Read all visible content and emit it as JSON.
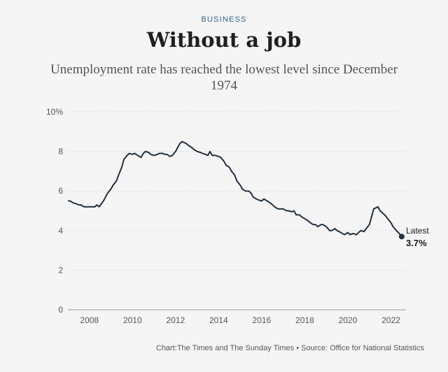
{
  "header": {
    "kicker": "BUSINESS",
    "title": "Without a job",
    "subtitle": "Unemployment rate has reached the lowest level since December 1974"
  },
  "colors": {
    "line": "#22303f",
    "grid": "#cfcfcf",
    "kicker": "#36618a"
  },
  "source": "Chart:The Times and The Sunday Times • Source: Office for National Statistics",
  "chart_data": {
    "type": "line",
    "title": "Without a job",
    "subtitle": "Unemployment rate has reached the lowest level since December 1974",
    "xlabel": "",
    "ylabel": "",
    "xlim": [
      2007.0,
      2022.7
    ],
    "ylim": [
      0,
      10
    ],
    "x_ticks": [
      2008,
      2010,
      2012,
      2014,
      2016,
      2018,
      2020,
      2022
    ],
    "y_ticks": [
      {
        "value": 0,
        "label": "0"
      },
      {
        "value": 2,
        "label": "2"
      },
      {
        "value": 4,
        "label": "4"
      },
      {
        "value": 6,
        "label": "6"
      },
      {
        "value": 8,
        "label": "8"
      },
      {
        "value": 10,
        "label": "10%"
      }
    ],
    "grid": "horizontal",
    "annotation": {
      "label": "Latest",
      "value_label": "3.7%",
      "x": 2022.1,
      "y": 3.7
    },
    "series": [
      {
        "points": [
          [
            2007.0,
            5.5
          ],
          [
            2007.1,
            5.5
          ],
          [
            2007.25,
            5.4
          ],
          [
            2007.4,
            5.35
          ],
          [
            2007.5,
            5.3
          ],
          [
            2007.6,
            5.3
          ],
          [
            2007.75,
            5.2
          ],
          [
            2007.9,
            5.2
          ],
          [
            2008.0,
            5.2
          ],
          [
            2008.15,
            5.2
          ],
          [
            2008.25,
            5.2
          ],
          [
            2008.35,
            5.3
          ],
          [
            2008.45,
            5.2
          ],
          [
            2008.55,
            5.35
          ],
          [
            2008.65,
            5.5
          ],
          [
            2008.75,
            5.7
          ],
          [
            2008.85,
            5.9
          ],
          [
            2009.0,
            6.1
          ],
          [
            2009.1,
            6.3
          ],
          [
            2009.25,
            6.5
          ],
          [
            2009.35,
            6.8
          ],
          [
            2009.5,
            7.2
          ],
          [
            2009.6,
            7.6
          ],
          [
            2009.75,
            7.8
          ],
          [
            2009.85,
            7.9
          ],
          [
            2010.0,
            7.85
          ],
          [
            2010.1,
            7.9
          ],
          [
            2010.25,
            7.8
          ],
          [
            2010.4,
            7.7
          ],
          [
            2010.5,
            7.9
          ],
          [
            2010.6,
            8.0
          ],
          [
            2010.75,
            7.95
          ],
          [
            2010.85,
            7.85
          ],
          [
            2011.0,
            7.8
          ],
          [
            2011.15,
            7.85
          ],
          [
            2011.25,
            7.9
          ],
          [
            2011.4,
            7.9
          ],
          [
            2011.5,
            7.85
          ],
          [
            2011.6,
            7.85
          ],
          [
            2011.75,
            7.75
          ],
          [
            2011.85,
            7.8
          ],
          [
            2012.0,
            8.0
          ],
          [
            2012.1,
            8.2
          ],
          [
            2012.2,
            8.4
          ],
          [
            2012.3,
            8.5
          ],
          [
            2012.4,
            8.45
          ],
          [
            2012.5,
            8.4
          ],
          [
            2012.6,
            8.3
          ],
          [
            2012.75,
            8.2
          ],
          [
            2012.85,
            8.1
          ],
          [
            2013.0,
            8.0
          ],
          [
            2013.15,
            7.95
          ],
          [
            2013.25,
            7.9
          ],
          [
            2013.4,
            7.85
          ],
          [
            2013.5,
            7.8
          ],
          [
            2013.6,
            8.0
          ],
          [
            2013.7,
            7.8
          ],
          [
            2013.85,
            7.8
          ],
          [
            2014.0,
            7.75
          ],
          [
            2014.1,
            7.7
          ],
          [
            2014.25,
            7.5
          ],
          [
            2014.35,
            7.3
          ],
          [
            2014.5,
            7.2
          ],
          [
            2014.6,
            7.0
          ],
          [
            2014.75,
            6.8
          ],
          [
            2014.85,
            6.5
          ],
          [
            2015.0,
            6.3
          ],
          [
            2015.1,
            6.1
          ],
          [
            2015.25,
            6.0
          ],
          [
            2015.4,
            6.0
          ],
          [
            2015.5,
            5.9
          ],
          [
            2015.6,
            5.7
          ],
          [
            2015.75,
            5.6
          ],
          [
            2015.85,
            5.55
          ],
          [
            2016.0,
            5.5
          ],
          [
            2016.1,
            5.6
          ],
          [
            2016.25,
            5.5
          ],
          [
            2016.4,
            5.4
          ],
          [
            2016.5,
            5.3
          ],
          [
            2016.6,
            5.2
          ],
          [
            2016.75,
            5.1
          ],
          [
            2016.85,
            5.1
          ],
          [
            2017.0,
            5.1
          ],
          [
            2017.15,
            5.0
          ],
          [
            2017.25,
            5.0
          ],
          [
            2017.4,
            4.95
          ],
          [
            2017.5,
            5.0
          ],
          [
            2017.6,
            4.8
          ],
          [
            2017.75,
            4.8
          ],
          [
            2017.85,
            4.7
          ],
          [
            2018.0,
            4.6
          ],
          [
            2018.15,
            4.5
          ],
          [
            2018.25,
            4.4
          ],
          [
            2018.4,
            4.3
          ],
          [
            2018.5,
            4.3
          ],
          [
            2018.6,
            4.2
          ],
          [
            2018.75,
            4.3
          ],
          [
            2018.85,
            4.3
          ],
          [
            2019.0,
            4.2
          ],
          [
            2019.15,
            4.0
          ],
          [
            2019.25,
            4.0
          ],
          [
            2019.4,
            4.1
          ],
          [
            2019.5,
            4.0
          ],
          [
            2019.6,
            3.95
          ],
          [
            2019.75,
            3.85
          ],
          [
            2019.85,
            3.8
          ],
          [
            2020.0,
            3.9
          ],
          [
            2020.1,
            3.8
          ],
          [
            2020.25,
            3.85
          ],
          [
            2020.4,
            3.8
          ],
          [
            2020.5,
            3.9
          ],
          [
            2020.6,
            4.0
          ],
          [
            2020.75,
            3.95
          ],
          [
            2020.85,
            4.1
          ],
          [
            2021.0,
            4.3
          ],
          [
            2021.1,
            4.7
          ],
          [
            2021.2,
            5.1
          ],
          [
            2021.3,
            5.15
          ],
          [
            2021.4,
            5.2
          ],
          [
            2021.5,
            5.0
          ],
          [
            2021.6,
            4.9
          ],
          [
            2021.75,
            4.75
          ],
          [
            2021.85,
            4.6
          ],
          [
            2022.0,
            4.4
          ],
          [
            2022.1,
            4.2
          ],
          [
            2022.25,
            4.0
          ],
          [
            2022.35,
            3.9
          ],
          [
            2022.5,
            3.7
          ]
        ]
      }
    ]
  }
}
